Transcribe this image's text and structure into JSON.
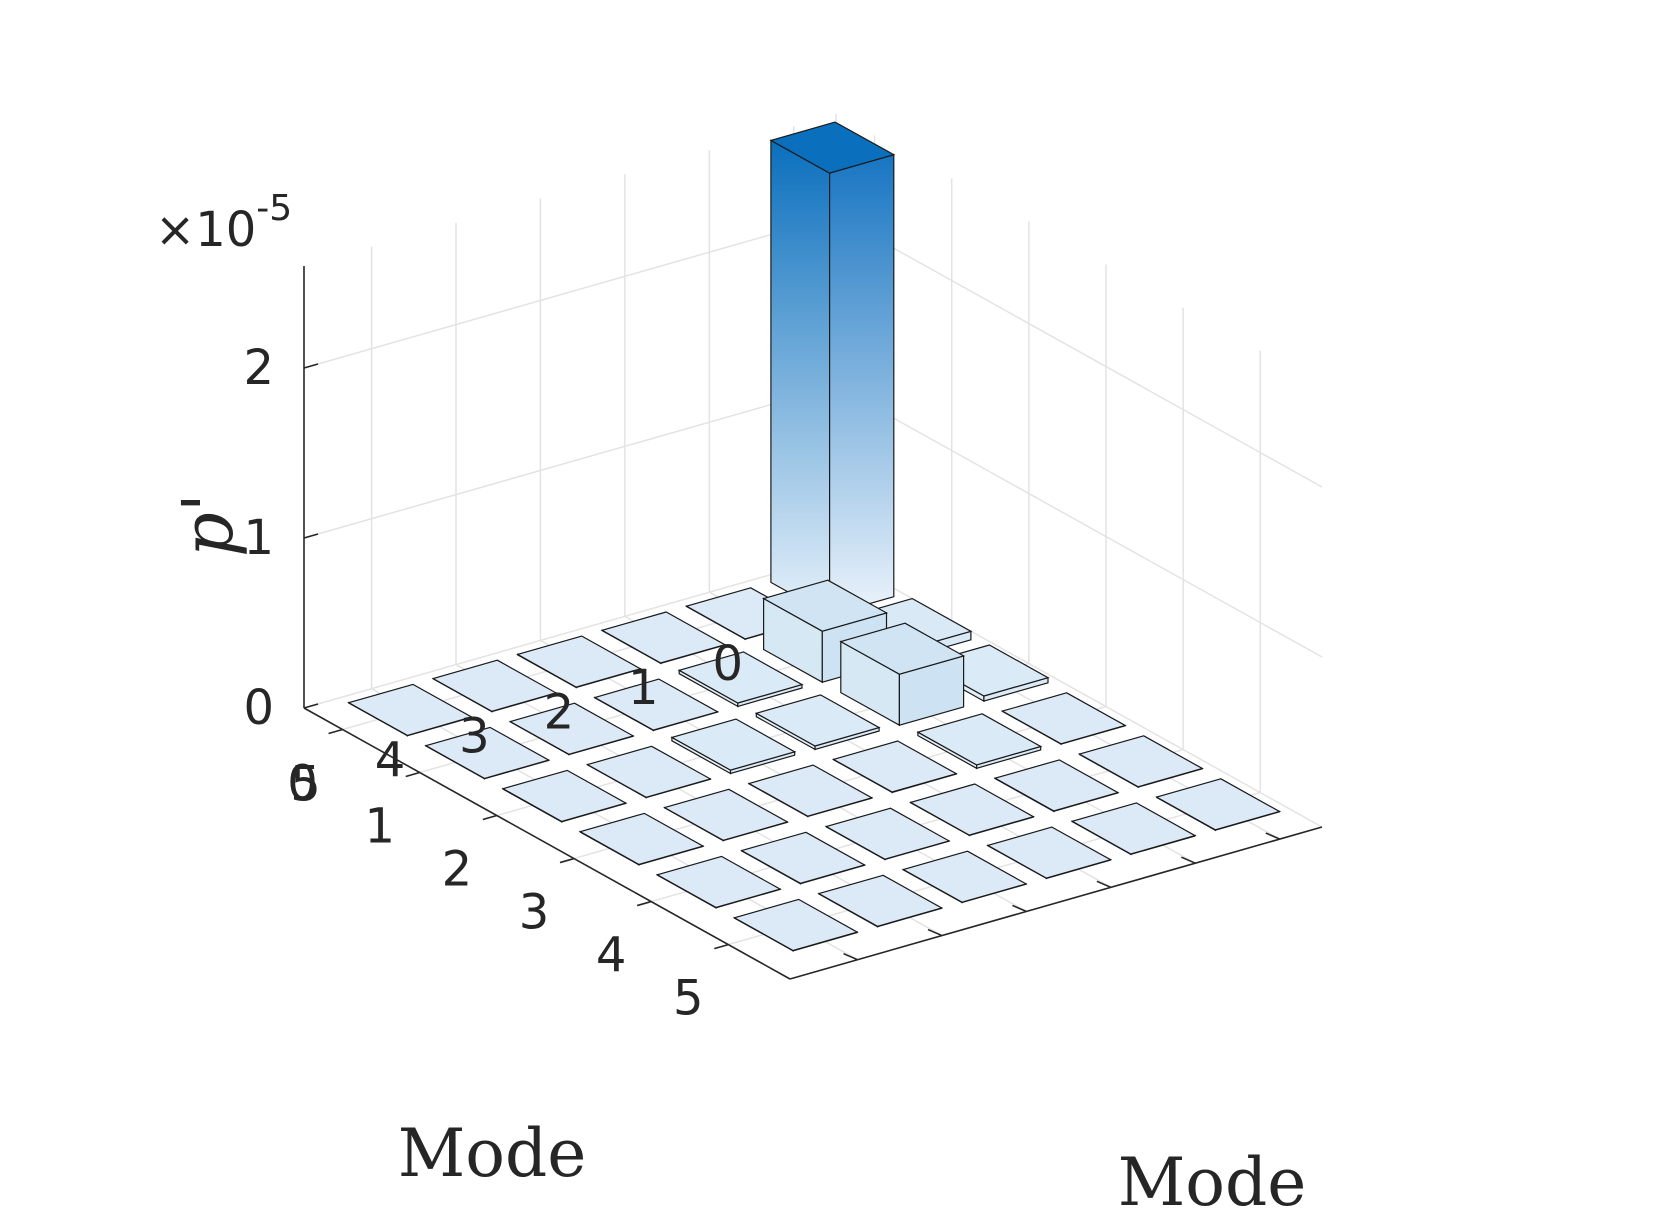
{
  "chart_data": {
    "type": "bar3d",
    "title": "",
    "x_axis": {
      "label": "Mode",
      "ticks": [
        "0",
        "1",
        "2",
        "3",
        "4",
        "5"
      ]
    },
    "y_axis": {
      "label": "Mode",
      "ticks": [
        "0",
        "1",
        "2",
        "3",
        "4",
        "5"
      ]
    },
    "z_axis": {
      "label": "p'",
      "ticks": [
        "0",
        "1",
        "2"
      ],
      "zlim": [
        0,
        2.6
      ],
      "exponent_label": "×10",
      "exponent_power": "-5"
    },
    "grid": true,
    "colormap": {
      "low": "#eef5fb",
      "high": "#0070c0"
    },
    "values": [
      [
        2.6,
        0.05,
        0.03,
        0.0,
        0.0,
        0.0
      ],
      [
        0.0,
        0.3,
        0.3,
        0.02,
        0.0,
        0.0
      ],
      [
        0.0,
        0.02,
        0.02,
        0.0,
        0.0,
        0.0
      ],
      [
        0.0,
        0.0,
        0.02,
        0.0,
        0.0,
        0.0
      ],
      [
        0.0,
        0.0,
        0.0,
        0.0,
        0.0,
        0.0
      ],
      [
        0.0,
        0.0,
        0.0,
        0.0,
        0.0,
        0.0
      ]
    ]
  }
}
